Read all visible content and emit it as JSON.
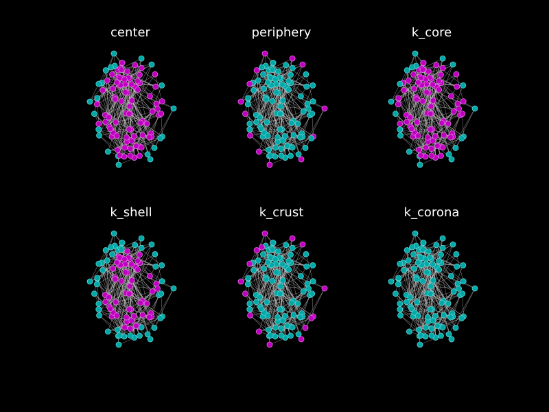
{
  "figure": {
    "background": "#000000",
    "colors": {
      "in_set": "#c000c0",
      "out_set": "#00a8a8",
      "edge": "#d8d8d8"
    }
  },
  "panels": [
    {
      "title": "center",
      "highlight_fraction": 0.78
    },
    {
      "title": "periphery",
      "highlight_fraction": 0.12
    },
    {
      "title": "k_core",
      "highlight_fraction": 0.8
    },
    {
      "title": "k_shell",
      "highlight_fraction": 0.55
    },
    {
      "title": "k_crust",
      "highlight_fraction": 0.15
    },
    {
      "title": "k_corona",
      "highlight_fraction": 0.0
    }
  ]
}
